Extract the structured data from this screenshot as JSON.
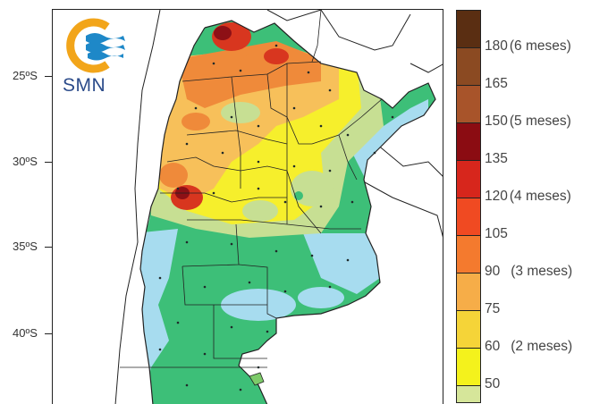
{
  "logo": {
    "text": "SMN",
    "colors": {
      "ring": "#f2a51a",
      "waves": "#1e88c8"
    }
  },
  "latitude_labels": [
    "25ºS",
    "30ºS",
    "35ºS",
    "40ºS"
  ],
  "legend": {
    "items": [
      {
        "value": "180",
        "note": "(6 meses)",
        "color": "#5a2e12"
      },
      {
        "value": "165",
        "note": "",
        "color": "#8b4a22"
      },
      {
        "value": "150",
        "note": "(5 meses)",
        "color": "#a8542a"
      },
      {
        "value": "135",
        "note": "",
        "color": "#8b0c12"
      },
      {
        "value": "120",
        "note": "(4 meses)",
        "color": "#d7261c"
      },
      {
        "value": "105",
        "note": "",
        "color": "#f04a22"
      },
      {
        "value": "90",
        "note": "(3 meses)",
        "color": "#f47a2e"
      },
      {
        "value": "75",
        "note": "",
        "color": "#f6ad48"
      },
      {
        "value": "60",
        "note": "(2 meses)",
        "color": "#f5d438"
      },
      {
        "value": "50",
        "note": "",
        "color": "#f4f21c"
      }
    ],
    "bottom_color": "#d6e69a"
  },
  "map_colors": {
    "land_base": "#3dbf78",
    "light_blue": "#a7dcef",
    "pale_green": "#c7df93",
    "yellow": "#f6ef2c",
    "light_orange": "#f7c05a",
    "orange": "#ef8a3a",
    "red": "#d8361f",
    "dark_red": "#8d1016",
    "boundary": "#222222",
    "station": "#1f2a2a"
  }
}
